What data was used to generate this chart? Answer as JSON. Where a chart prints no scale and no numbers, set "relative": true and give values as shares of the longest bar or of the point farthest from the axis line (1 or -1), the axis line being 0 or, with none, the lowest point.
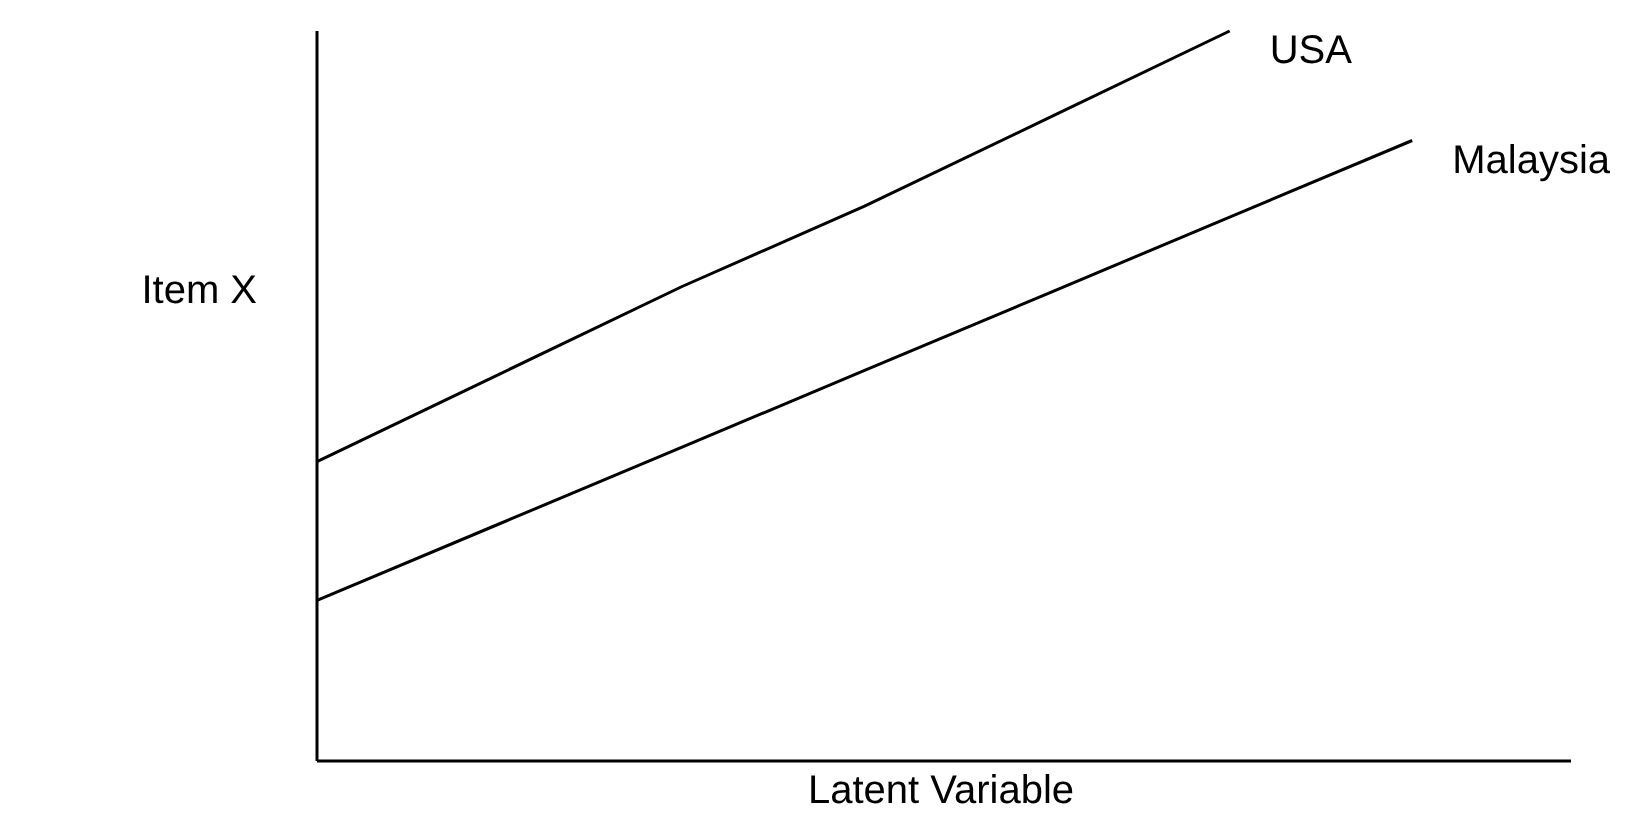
{
  "chart_data": {
    "type": "line",
    "relative": true,
    "xlabel": "Latent Variable",
    "ylabel": "Item X",
    "categories": [
      null,
      null,
      null,
      null,
      null,
      null,
      null
    ],
    "series": [
      {
        "name": "USA",
        "color": "#000000",
        "values": [
          0.41,
          0.53,
          0.65,
          0.76,
          0.88,
          1.0,
          null
        ]
      },
      {
        "name": "Malaysia",
        "color": "#000000",
        "values": [
          0.22,
          0.325,
          0.43,
          0.535,
          0.64,
          0.745,
          0.85
        ]
      }
    ],
    "legend": false,
    "grid": false,
    "marker": "none",
    "line_style": "solid"
  }
}
